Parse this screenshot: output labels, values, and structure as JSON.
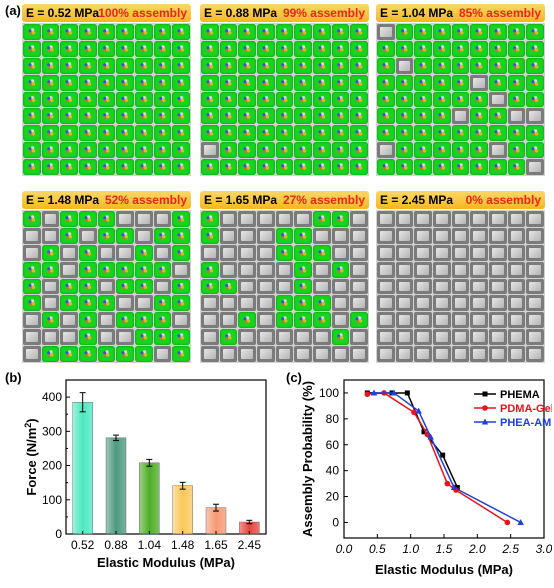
{
  "panel_labels": {
    "a": "(a)",
    "b": "(b)",
    "c": "(c)"
  },
  "grid_panels": [
    {
      "e_label": "E = 0.52 MPa",
      "assembly_label": "100% assembly",
      "pattern": [
        "111111111",
        "111111111",
        "111111111",
        "111111111",
        "111111111",
        "111111111",
        "111111111",
        "111111111",
        "111111111"
      ]
    },
    {
      "e_label": "E = 0.88 MPa",
      "assembly_label": "99% assembly",
      "pattern": [
        "111111111",
        "111111111",
        "111111111",
        "111111111",
        "111111111",
        "111111111",
        "111111111",
        "011111111",
        "111111111"
      ]
    },
    {
      "e_label": "E = 1.04 MPa",
      "assembly_label": "85% assembly",
      "pattern": [
        "011111111",
        "111111111",
        "101111111",
        "111110111",
        "111111011",
        "111101100",
        "111111111",
        "011111011",
        "111111110"
      ]
    },
    {
      "e_label": "E = 1.48 MPa",
      "assembly_label": "52% assembly",
      "pattern": [
        "101110001",
        "001011011",
        "010100101",
        "110111110",
        "101101101",
        "101110011",
        "010101110",
        "000100111",
        "011111101"
      ]
    },
    {
      "e_label": "E = 1.65 MPa",
      "assembly_label": "27% assembly",
      "pattern": [
        "100000110",
        "100011000",
        "000011100",
        "100001010",
        "110001000",
        "000011100",
        "001011101",
        "010000010",
        "000000000"
      ]
    },
    {
      "e_label": "E = 2.45 MPa",
      "assembly_label": "0% assembly",
      "pattern": [
        "000000000",
        "000000000",
        "000000000",
        "000000000",
        "000000000",
        "000000000",
        "000000000",
        "000000000",
        "000000000"
      ]
    }
  ],
  "chart_data": [
    {
      "type": "bar",
      "panel": "(b)",
      "categories": [
        "0.52",
        "0.88",
        "1.04",
        "1.48",
        "1.65",
        "2.45"
      ],
      "values": [
        385,
        281,
        208,
        141,
        77,
        35
      ],
      "errors": [
        28,
        8,
        10,
        10,
        10,
        5
      ],
      "colors": [
        "#4de8bf",
        "#4c9a80",
        "#4dae25",
        "#fbc75a",
        "#f59a72",
        "#e4453d"
      ],
      "xlabel": "Elastic Modulus (MPa)",
      "ylabel": "Force (N/m",
      "ylabel_sup": "2",
      "ylabel_end": ")",
      "ylim": [
        0,
        450
      ],
      "yticks": [
        "0",
        "100",
        "200",
        "300",
        "400"
      ]
    },
    {
      "type": "line",
      "panel": "(c)",
      "xlabel": "Elastic Modulus (MPa)",
      "ylabel": "Assembly Probability (%)",
      "xlim": [
        0,
        3
      ],
      "ylim": [
        -12,
        110
      ],
      "xticks": [
        "0.0",
        "0.5",
        "1.0",
        "1.5",
        "2.0",
        "2.5",
        "3.0"
      ],
      "yticks": [
        "0",
        "20",
        "40",
        "60",
        "80",
        "100"
      ],
      "legend_position": "top-right",
      "series": [
        {
          "name": "PHEMA",
          "color": "#000000",
          "marker": "square",
          "x": [
            0.35,
            0.72,
            0.95,
            1.2,
            1.48,
            1.7
          ],
          "y": [
            100,
            100,
            100,
            70,
            52,
            27
          ]
        },
        {
          "name": "PDMA-Gel",
          "color": "#e8141c",
          "marker": "circle",
          "x": [
            0.35,
            0.6,
            1.05,
            1.25,
            1.55,
            1.68,
            2.45
          ],
          "y": [
            99,
            100,
            85,
            68,
            30,
            25,
            0
          ]
        },
        {
          "name": "PHEA-AM",
          "color": "#1f3fe0",
          "marker": "triangle",
          "x": [
            0.45,
            0.75,
            1.12,
            1.3,
            1.65,
            2.65
          ],
          "y": [
            100,
            100,
            86,
            66,
            27,
            0
          ]
        }
      ]
    }
  ]
}
